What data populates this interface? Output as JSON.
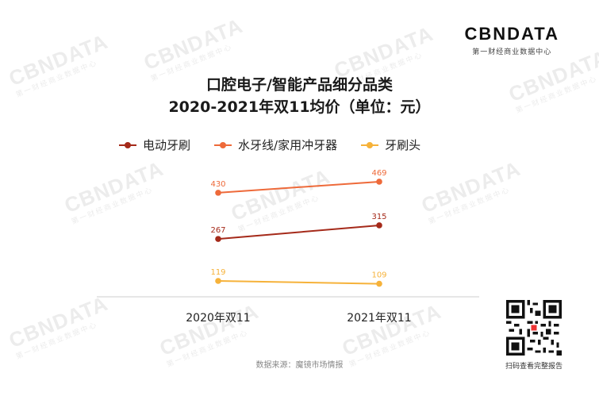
{
  "brand": {
    "logo": "CBNDATA",
    "subtitle": "第一财经商业数据中心"
  },
  "watermark": {
    "main": "CBNDATA",
    "sub": "第一财经商业数据中心"
  },
  "title": {
    "line1": "口腔电子/智能产品细分品类",
    "line2": "2020-2021年双11均价（单位：元）"
  },
  "source": "数据来源：魔镜市场情报",
  "qr_caption": "扫码查看完整报告",
  "chart_data": {
    "type": "line",
    "x": [
      "2020年双11",
      "2021年双11"
    ],
    "series": [
      {
        "name": "电动牙刷",
        "color": "#a52a1a",
        "values": [
          267,
          315
        ]
      },
      {
        "name": "水牙线/家用冲牙器",
        "color": "#ee6a3a",
        "values": [
          430,
          469
        ]
      },
      {
        "name": "牙刷头",
        "color": "#f6b23a",
        "values": [
          119,
          109
        ]
      }
    ],
    "legend": "top"
  }
}
